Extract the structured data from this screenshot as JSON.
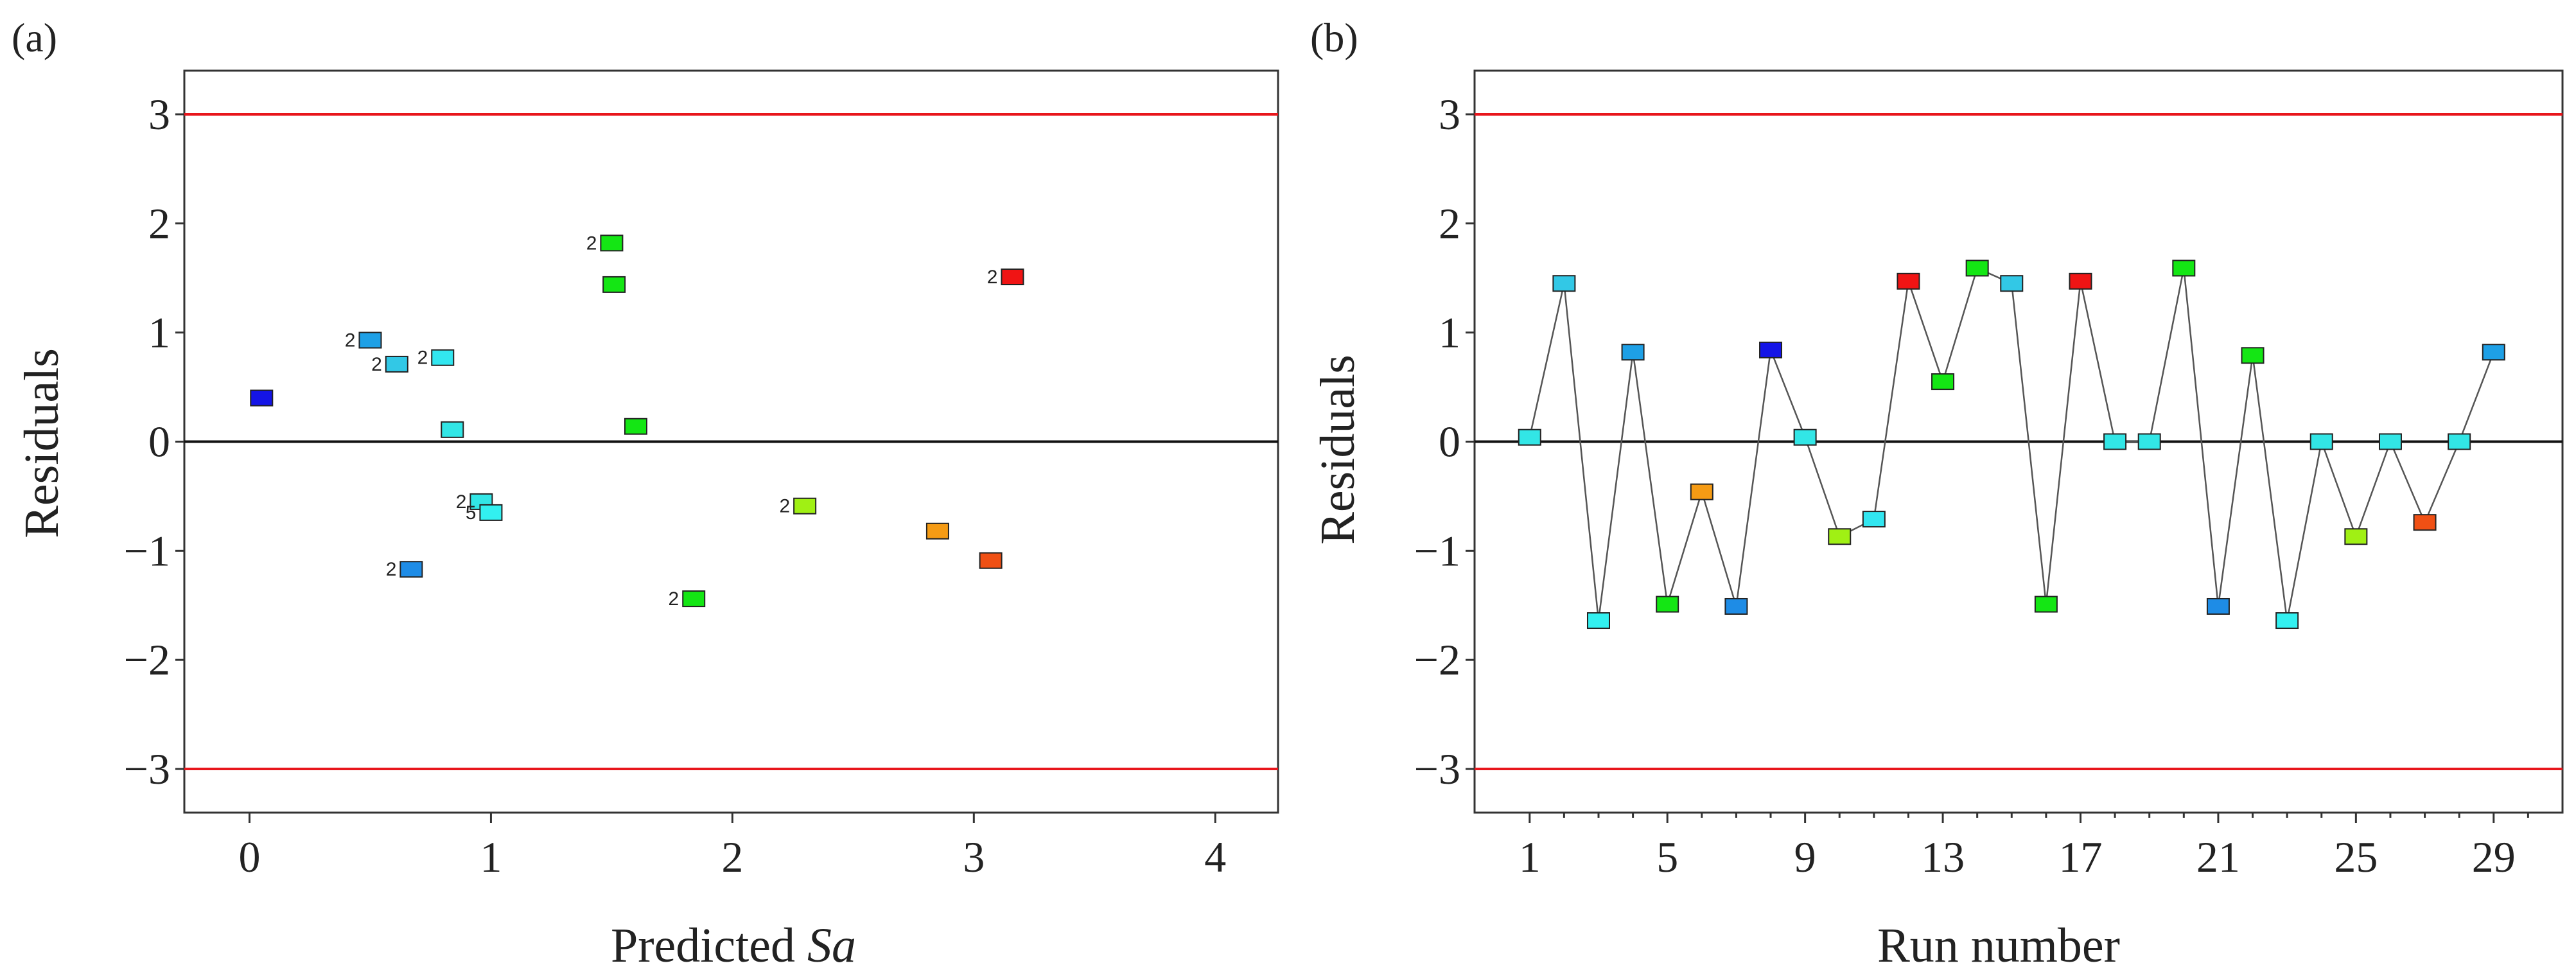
{
  "chart_data": [
    {
      "id": "a",
      "type": "scatter",
      "panel_label": "(a)",
      "title": "",
      "xlabel_main": "Predicted ",
      "xlabel_italic": "Sa",
      "ylabel": "Residuals",
      "xlim": [
        -0.27,
        4.26
      ],
      "ylim": [
        -3.4,
        3.4
      ],
      "xticks": [
        0,
        1,
        2,
        3,
        4
      ],
      "xtick_labels": [
        "0",
        "1",
        "2",
        "3",
        "4"
      ],
      "yticks": [
        -3,
        -2,
        -1,
        0,
        1,
        2,
        3
      ],
      "ytick_labels": [
        "−3",
        "−2",
        "−1",
        "0",
        "1",
        "2",
        "3"
      ],
      "reference_lines": [
        3,
        0,
        -3
      ],
      "points": [
        {
          "x": 0.05,
          "y": 0.4,
          "color": "#1414e6"
        },
        {
          "x": 0.5,
          "y": 0.93,
          "color": "#1ea0e6",
          "count": "2"
        },
        {
          "x": 0.61,
          "y": 0.71,
          "color": "#32c8e6",
          "count": "2"
        },
        {
          "x": 0.8,
          "y": 0.77,
          "color": "#32e6f0",
          "count": "2"
        },
        {
          "x": 0.84,
          "y": 0.11,
          "color": "#32e6e6"
        },
        {
          "x": 0.96,
          "y": -0.55,
          "color": "#32e6e6",
          "count": "2"
        },
        {
          "x": 1.0,
          "y": -0.65,
          "color": "#32f0f0",
          "count": "5"
        },
        {
          "x": 0.67,
          "y": -1.17,
          "color": "#1e8ce6",
          "count": "2"
        },
        {
          "x": 1.5,
          "y": 1.82,
          "color": "#14e614",
          "count": "2"
        },
        {
          "x": 1.51,
          "y": 1.44,
          "color": "#14e614"
        },
        {
          "x": 1.6,
          "y": 0.14,
          "color": "#14e614"
        },
        {
          "x": 1.84,
          "y": -1.44,
          "color": "#14e614",
          "count": "2"
        },
        {
          "x": 2.3,
          "y": -0.59,
          "color": "#a0f014",
          "count": "2"
        },
        {
          "x": 2.85,
          "y": -0.82,
          "color": "#f59b14"
        },
        {
          "x": 3.07,
          "y": -1.09,
          "color": "#f05014"
        },
        {
          "x": 3.16,
          "y": 1.51,
          "color": "#f01414",
          "count": "2"
        }
      ]
    },
    {
      "id": "b",
      "type": "line",
      "panel_label": "(b)",
      "title": "",
      "xlabel": "Run number",
      "ylabel": "Residuals",
      "xlim": [
        -0.6,
        31.0
      ],
      "ylim": [
        -3.4,
        3.4
      ],
      "xticks": [
        1,
        5,
        9,
        13,
        17,
        21,
        25,
        29
      ],
      "xtick_labels": [
        "1",
        "5",
        "9",
        "13",
        "17",
        "21",
        "25",
        "29"
      ],
      "minor_xticks": [
        2,
        3,
        4,
        6,
        7,
        8,
        10,
        11,
        12,
        14,
        15,
        16,
        18,
        19,
        20,
        22,
        23,
        24,
        26,
        27,
        28,
        30
      ],
      "yticks": [
        -3,
        -2,
        -1,
        0,
        1,
        2,
        3
      ],
      "ytick_labels": [
        "−3",
        "−2",
        "−1",
        "0",
        "1",
        "2",
        "3"
      ],
      "reference_lines": [
        3,
        0,
        -3
      ],
      "points": [
        {
          "x": 1,
          "y": 0.04,
          "color": "#32e6e6"
        },
        {
          "x": 2,
          "y": 1.45,
          "color": "#32c8e6"
        },
        {
          "x": 3,
          "y": -1.64,
          "color": "#32f0f0"
        },
        {
          "x": 4,
          "y": 0.82,
          "color": "#1ea0e6"
        },
        {
          "x": 5,
          "y": -1.49,
          "color": "#14e614"
        },
        {
          "x": 6,
          "y": -0.46,
          "color": "#f59b14"
        },
        {
          "x": 7,
          "y": -1.51,
          "color": "#1e8ce6"
        },
        {
          "x": 8,
          "y": 0.84,
          "color": "#1414e6"
        },
        {
          "x": 9,
          "y": 0.04,
          "color": "#32e6e6"
        },
        {
          "x": 10,
          "y": -0.87,
          "color": "#a0f014"
        },
        {
          "x": 11,
          "y": -0.71,
          "color": "#32e6f0"
        },
        {
          "x": 12,
          "y": 1.47,
          "color": "#f01414"
        },
        {
          "x": 13,
          "y": 0.55,
          "color": "#14e614"
        },
        {
          "x": 14,
          "y": 1.59,
          "color": "#14e614"
        },
        {
          "x": 15,
          "y": 1.45,
          "color": "#32c8e6"
        },
        {
          "x": 16,
          "y": -1.49,
          "color": "#14e614"
        },
        {
          "x": 17,
          "y": 1.47,
          "color": "#f01414"
        },
        {
          "x": 18,
          "y": 0.0,
          "color": "#32e6e6"
        },
        {
          "x": 19,
          "y": 0.0,
          "color": "#32e6e6"
        },
        {
          "x": 20,
          "y": 1.59,
          "color": "#14e614"
        },
        {
          "x": 21,
          "y": -1.51,
          "color": "#1e8ce6"
        },
        {
          "x": 22,
          "y": 0.79,
          "color": "#14e614"
        },
        {
          "x": 23,
          "y": -1.64,
          "color": "#32f0f0"
        },
        {
          "x": 24,
          "y": 0.0,
          "color": "#32e6e6"
        },
        {
          "x": 25,
          "y": -0.87,
          "color": "#a0f014"
        },
        {
          "x": 26,
          "y": 0.0,
          "color": "#32e6e6"
        },
        {
          "x": 27,
          "y": -0.74,
          "color": "#f05014"
        },
        {
          "x": 28,
          "y": 0.0,
          "color": "#32e6e6"
        },
        {
          "x": 29,
          "y": 0.82,
          "color": "#1ea0e6"
        }
      ]
    }
  ],
  "colors": {
    "limit_line": "#e8161c",
    "zero_line": "#111111",
    "frame": "#333333",
    "series_line": "#555555"
  }
}
